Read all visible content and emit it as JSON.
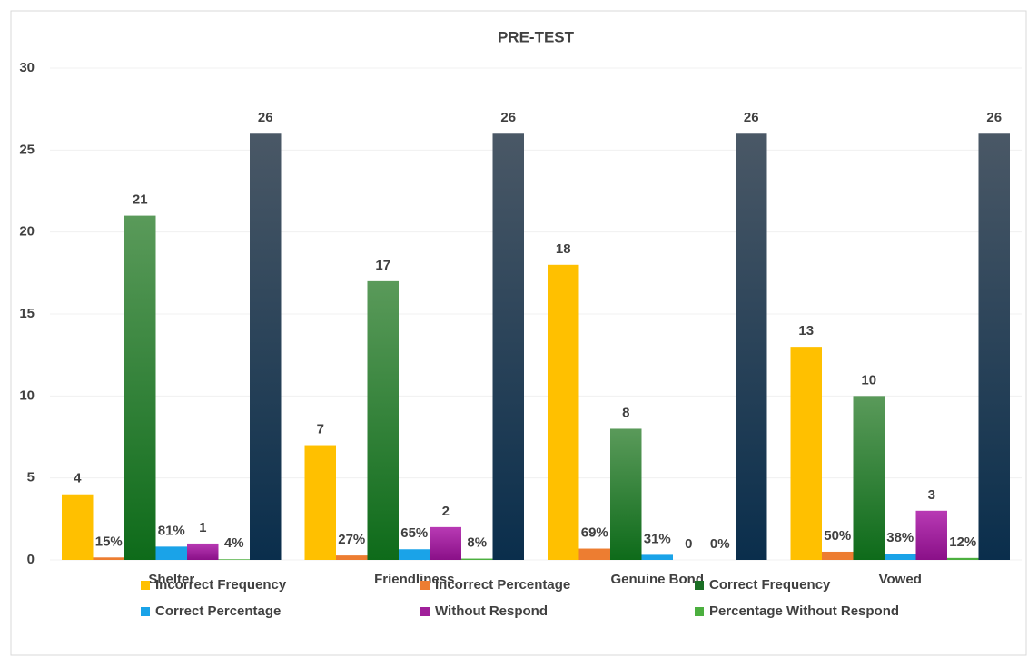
{
  "chart_data": {
    "type": "bar",
    "title": "PRE-TEST",
    "categories": [
      "Shelter",
      "Friendliness",
      "Genuine Bond",
      "Vowed"
    ],
    "ylim": [
      0,
      30
    ],
    "yticks": [
      0,
      5,
      10,
      15,
      20,
      25,
      30
    ],
    "grid": true,
    "legend": "bottom",
    "series": [
      {
        "name": "Incorrect Frequency",
        "color": "#ffc000",
        "values": [
          4,
          7,
          18,
          13
        ]
      },
      {
        "name": "Incorrect Percentage",
        "color": "#ed7d31",
        "values": [
          0.15,
          0.27,
          0.69,
          0.5
        ],
        "value_labels": [
          "15%",
          "27%",
          "69%",
          "50%"
        ]
      },
      {
        "name": "Correct Frequency",
        "color": "#1a6e24",
        "values": [
          21,
          17,
          8,
          10
        ]
      },
      {
        "name": "Correct Percentage",
        "color": "#1aa3e8",
        "values": [
          0.81,
          0.65,
          0.31,
          0.38
        ],
        "value_labels": [
          "81%",
          "65%",
          "31%",
          "38%"
        ]
      },
      {
        "name": "Without Respond",
        "color": "#a0209a",
        "values": [
          1,
          2,
          0,
          3
        ]
      },
      {
        "name": "Percentage Without Respond",
        "color": "#4caf3f",
        "values": [
          0.04,
          0.08,
          0,
          0.12
        ],
        "value_labels": [
          "4%",
          "8%",
          "0%",
          "12%"
        ]
      },
      {
        "color": "#0f3450",
        "values": [
          26,
          26,
          26,
          26
        ]
      }
    ]
  }
}
